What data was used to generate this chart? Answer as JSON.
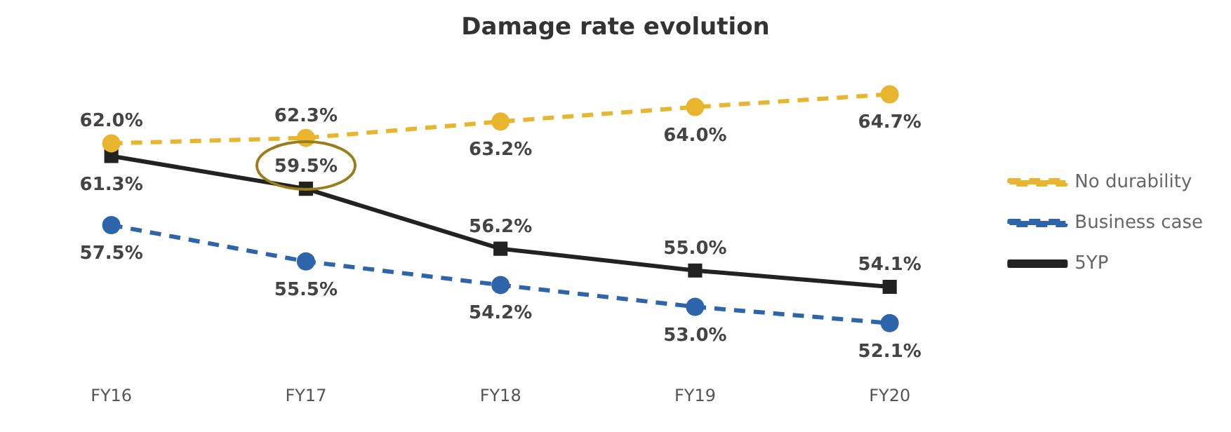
{
  "chart_data": {
    "type": "line",
    "title": "Damage rate evolution",
    "categories": [
      "FY16",
      "FY17",
      "FY18",
      "FY19",
      "FY20"
    ],
    "grid": false,
    "legend": "right",
    "tick_labels": "x",
    "series": [
      {
        "name": "No durability",
        "color": "#e8b52e",
        "values": [
          62.0,
          62.3,
          63.2,
          64.0,
          64.7
        ],
        "value_labels": [
          "62.0%",
          "62.3%",
          "63.2%",
          "64.0%",
          "64.7%"
        ],
        "marker": "circle",
        "line_style": "dashed"
      },
      {
        "name": "Business case",
        "color": "#2e65aa",
        "values": [
          57.5,
          55.5,
          54.2,
          53.0,
          52.1
        ],
        "value_labels": [
          "57.5%",
          "55.5%",
          "54.2%",
          "53.0%",
          "52.1%"
        ],
        "marker": "circle",
        "line_style": "dashed"
      },
      {
        "name": "5YP",
        "color": "#222222",
        "values": [
          61.3,
          59.5,
          56.2,
          55.0,
          54.1
        ],
        "value_labels": [
          "61.3%",
          "59.5%",
          "56.2%",
          "55.0%",
          "54.1%"
        ],
        "marker": "square",
        "line_style": "solid"
      }
    ]
  }
}
